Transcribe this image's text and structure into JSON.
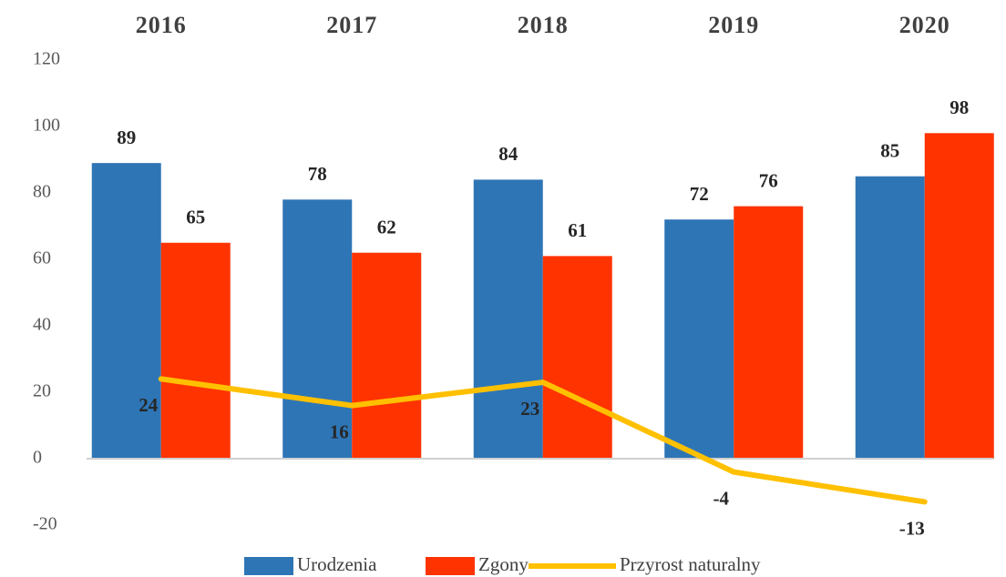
{
  "chart_data": {
    "type": "bar",
    "categories": [
      "2016",
      "2017",
      "2018",
      "2019",
      "2020"
    ],
    "series": [
      {
        "name": "Urodzenia",
        "color": "#2e75b6",
        "values": [
          89,
          78,
          84,
          72,
          85
        ]
      },
      {
        "name": "Zgony",
        "color": "#ff3300",
        "values": [
          65,
          62,
          61,
          76,
          98
        ]
      },
      {
        "name": "Przyrost naturalny",
        "type": "line",
        "color": "#ffc000",
        "values": [
          24,
          16,
          23,
          -4,
          -13
        ]
      }
    ],
    "ylim": [
      -20,
      120
    ],
    "yticks": [
      -20,
      0,
      20,
      40,
      60,
      80,
      100,
      120
    ],
    "grid": false,
    "legend": "bottom"
  }
}
